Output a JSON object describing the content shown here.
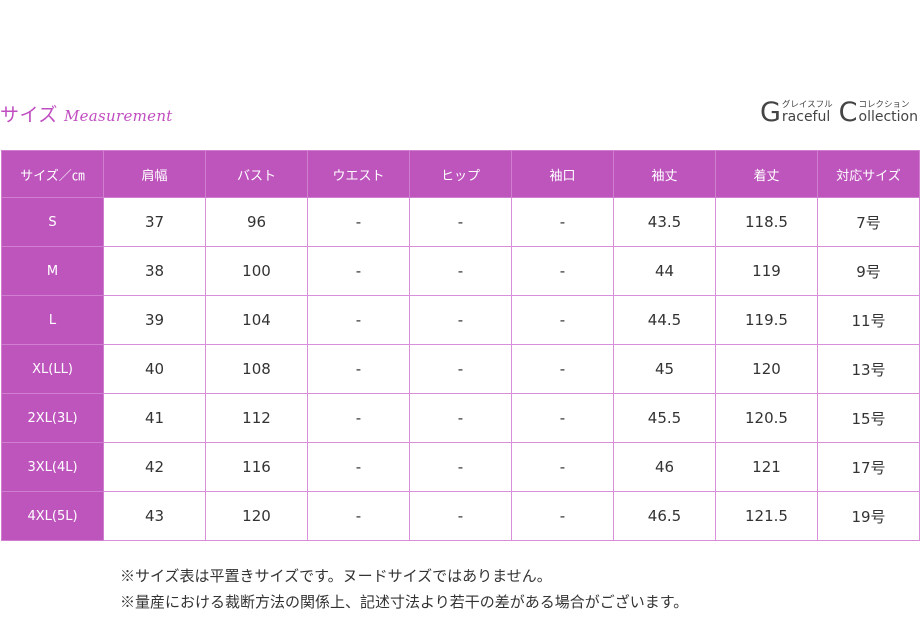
{
  "heading": {
    "jp": "サイズ",
    "en": "Measurement"
  },
  "logo": {
    "part1": {
      "cap": "G",
      "kana": "グレイスフル",
      "word": "raceful"
    },
    "part2": {
      "cap": "C",
      "kana": "コレクション",
      "word": "ollection"
    }
  },
  "table": {
    "headers": [
      "サイズ／㎝",
      "肩幅",
      "バスト",
      "ウエスト",
      "ヒップ",
      "袖口",
      "袖丈",
      "着丈",
      "対応サイズ"
    ],
    "rows": [
      {
        "size": "S",
        "cells": [
          "37",
          "96",
          "-",
          "-",
          "-",
          "43.5",
          "118.5",
          "7号"
        ]
      },
      {
        "size": "M",
        "cells": [
          "38",
          "100",
          "-",
          "-",
          "-",
          "44",
          "119",
          "9号"
        ]
      },
      {
        "size": "L",
        "cells": [
          "39",
          "104",
          "-",
          "-",
          "-",
          "44.5",
          "119.5",
          "11号"
        ]
      },
      {
        "size": "XL(LL)",
        "cells": [
          "40",
          "108",
          "-",
          "-",
          "-",
          "45",
          "120",
          "13号"
        ]
      },
      {
        "size": "2XL(3L)",
        "cells": [
          "41",
          "112",
          "-",
          "-",
          "-",
          "45.5",
          "120.5",
          "15号"
        ]
      },
      {
        "size": "3XL(4L)",
        "cells": [
          "42",
          "116",
          "-",
          "-",
          "-",
          "46",
          "121",
          "17号"
        ]
      },
      {
        "size": "4XL(5L)",
        "cells": [
          "43",
          "120",
          "-",
          "-",
          "-",
          "46.5",
          "121.5",
          "19号"
        ]
      }
    ]
  },
  "notes": [
    "※サイズ表は平置きサイズです。ヌードサイズではありません。",
    "※量産における裁断方法の関係上、記述寸法より若干の差がある場合がございます。"
  ],
  "colors": {
    "accent": "#bd55bd",
    "heading": "#c04dc0",
    "border": "#d98ed9"
  }
}
